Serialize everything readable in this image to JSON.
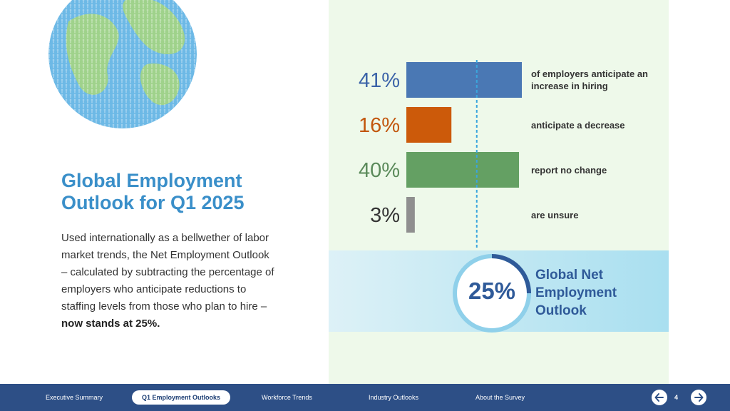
{
  "colors": {
    "accent_blue": "#3a8fc9",
    "panel_bg": "#eef9ea",
    "nav_bg": "#2d4f86",
    "globe_blue": "#6db9e6",
    "globe_green": "#9fd28b"
  },
  "intro": {
    "title": "Global Employment Outlook for Q1 2025",
    "body": "Used internationally as a bellwether of labor market trends, the Net Employment Outlook – calculated by subtracting the percentage of employers who anticipate reductions to staffing levels from those who plan to hire –",
    "body_emphasis": "now stands at 25%."
  },
  "chart_data": {
    "type": "bar",
    "categories": [
      "of employers anticipate an increase in hiring",
      "anticipate a decrease",
      "report no change",
      "are unsure"
    ],
    "values": [
      41,
      16,
      40,
      3
    ],
    "value_labels": [
      "41%",
      "16%",
      "40%",
      "3%"
    ],
    "colors": [
      "#4a78b4",
      "#cc5a0a",
      "#64a063",
      "#8f8f8f"
    ],
    "label_colors": [
      "#3b63a8",
      "#c2560c",
      "#5a8a5a",
      "#333333"
    ],
    "reference_value": 25,
    "xlim": [
      0,
      41
    ],
    "orientation": "horizontal"
  },
  "outlook": {
    "value": "25%",
    "fraction": 0.25,
    "label": "Global Net Employment Outlook",
    "ring_color": "#8fd0ea",
    "arc_color": "#2f5a99",
    "text_color": "#2f5a99",
    "value_color": "#2f5a99"
  },
  "nav": {
    "items": [
      "Executive Summary",
      "Q1 Employment Outlooks",
      "Workforce Trends",
      "Industry Outlooks",
      "About the Survey"
    ],
    "active_index": 1,
    "page": "4",
    "prev_icon": "arrow-left-icon",
    "next_icon": "arrow-right-icon"
  }
}
